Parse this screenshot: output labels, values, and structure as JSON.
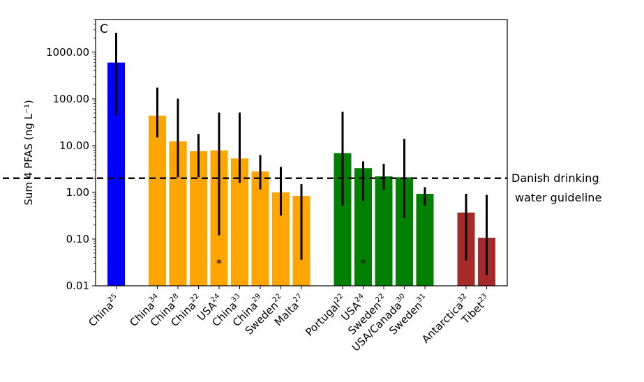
{
  "chart_data": {
    "type": "bar",
    "panel_label": "C",
    "title": "",
    "xlabel": "",
    "ylabel": "Sum 4 PFAS (ng L⁻¹)",
    "yscale": "log",
    "ylim": [
      0.01,
      5000
    ],
    "yticks": [
      0.01,
      0.1,
      1,
      10,
      100,
      1000
    ],
    "ytick_labels": [
      "0.01",
      "0.10",
      "1.00",
      "10.00",
      "100.00",
      "1000.00"
    ],
    "grid": false,
    "reference_line": {
      "value": 2.0,
      "style": "dashed",
      "label_lines": [
        "Danish drinking",
        "water guideline"
      ]
    },
    "colors": {
      "blue": "#0000ff",
      "orange": "#ffa500",
      "green": "#008000",
      "red": "#a52a2a"
    },
    "bars": [
      {
        "label": "China",
        "ref": "25",
        "pos": 0,
        "value": 600,
        "err_low": 45,
        "err_high": 2600,
        "color": "blue"
      },
      {
        "label": "China",
        "ref": "34",
        "pos": 2,
        "value": 44,
        "err_low": 15,
        "err_high": 175,
        "color": "orange"
      },
      {
        "label": "China",
        "ref": "28",
        "pos": 3,
        "value": 12.4,
        "err_low": 2.1,
        "err_high": 101,
        "color": "orange"
      },
      {
        "label": "China",
        "ref": "22",
        "pos": 4,
        "value": 7.6,
        "err_low": 2.1,
        "err_high": 17.8,
        "color": "orange"
      },
      {
        "label": "USA",
        "ref": "24",
        "pos": 5,
        "value": 7.9,
        "err_low": 0.12,
        "err_high": 51,
        "color": "orange",
        "asterisk": "*"
      },
      {
        "label": "China",
        "ref": "33",
        "pos": 6,
        "value": 5.3,
        "err_low": 1.6,
        "err_high": 51,
        "color": "orange"
      },
      {
        "label": "China",
        "ref": "29",
        "pos": 7,
        "value": 2.8,
        "err_low": 1.16,
        "err_high": 6.3,
        "color": "orange"
      },
      {
        "label": "Sweden",
        "ref": "22",
        "pos": 8,
        "value": 1.0,
        "err_low": 0.32,
        "err_high": 3.5,
        "color": "orange"
      },
      {
        "label": "Malta",
        "ref": "27",
        "pos": 9,
        "value": 0.84,
        "err_low": 0.036,
        "err_high": 1.5,
        "color": "orange"
      },
      {
        "label": "Portugal",
        "ref": "22",
        "pos": 11,
        "value": 6.9,
        "err_low": 0.52,
        "err_high": 53,
        "color": "green"
      },
      {
        "label": "USA",
        "ref": "24",
        "pos": 12,
        "value": 3.3,
        "err_low": 0.66,
        "err_high": 4.6,
        "color": "green",
        "asterisk": "*"
      },
      {
        "label": "Sweden",
        "ref": "22",
        "pos": 13,
        "value": 2.2,
        "err_low": 1.13,
        "err_high": 4.1,
        "color": "green"
      },
      {
        "label": "USA/Canada",
        "ref": "30",
        "pos": 14,
        "value": 2.1,
        "err_low": 0.28,
        "err_high": 14,
        "color": "green"
      },
      {
        "label": "Sweden",
        "ref": "31",
        "pos": 15,
        "value": 0.93,
        "err_low": 0.52,
        "err_high": 1.29,
        "color": "green"
      },
      {
        "label": "Antarctica",
        "ref": "32",
        "pos": 17,
        "value": 0.37,
        "err_low": 0.035,
        "err_high": 0.93,
        "color": "red"
      },
      {
        "label": "Tibet",
        "ref": "23",
        "pos": 18,
        "value": 0.107,
        "err_low": 0.017,
        "err_high": 0.88,
        "color": "red"
      }
    ],
    "xlim": [
      -1,
      19
    ]
  }
}
